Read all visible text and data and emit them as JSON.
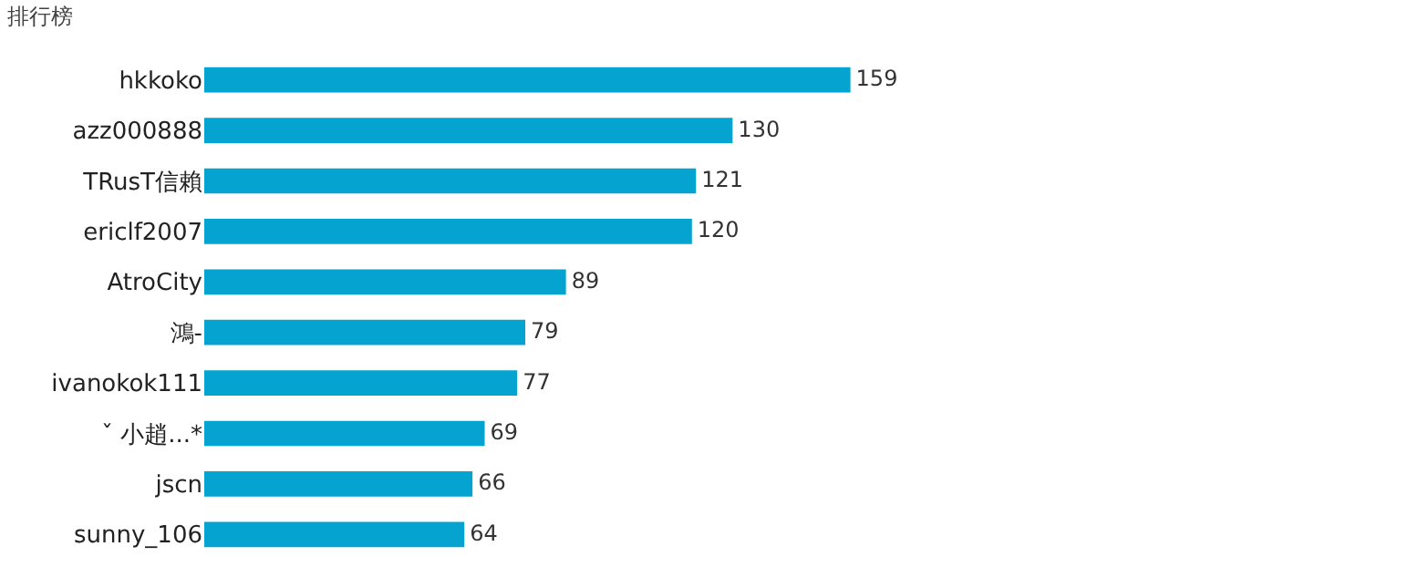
{
  "chart_data": {
    "type": "bar",
    "orientation": "horizontal",
    "title": "排行榜",
    "categories": [
      "hkkoko",
      "azz000888",
      "TRusT信賴",
      "ericlf2007",
      "AtroCity",
      "鴻-",
      "ivanokok111",
      "ˇ 小趙...*",
      "jscn",
      "sunny_106"
    ],
    "values": [
      159,
      130,
      121,
      120,
      89,
      79,
      77,
      69,
      66,
      64
    ],
    "color": "#04a3d0",
    "data_labels": true
  }
}
